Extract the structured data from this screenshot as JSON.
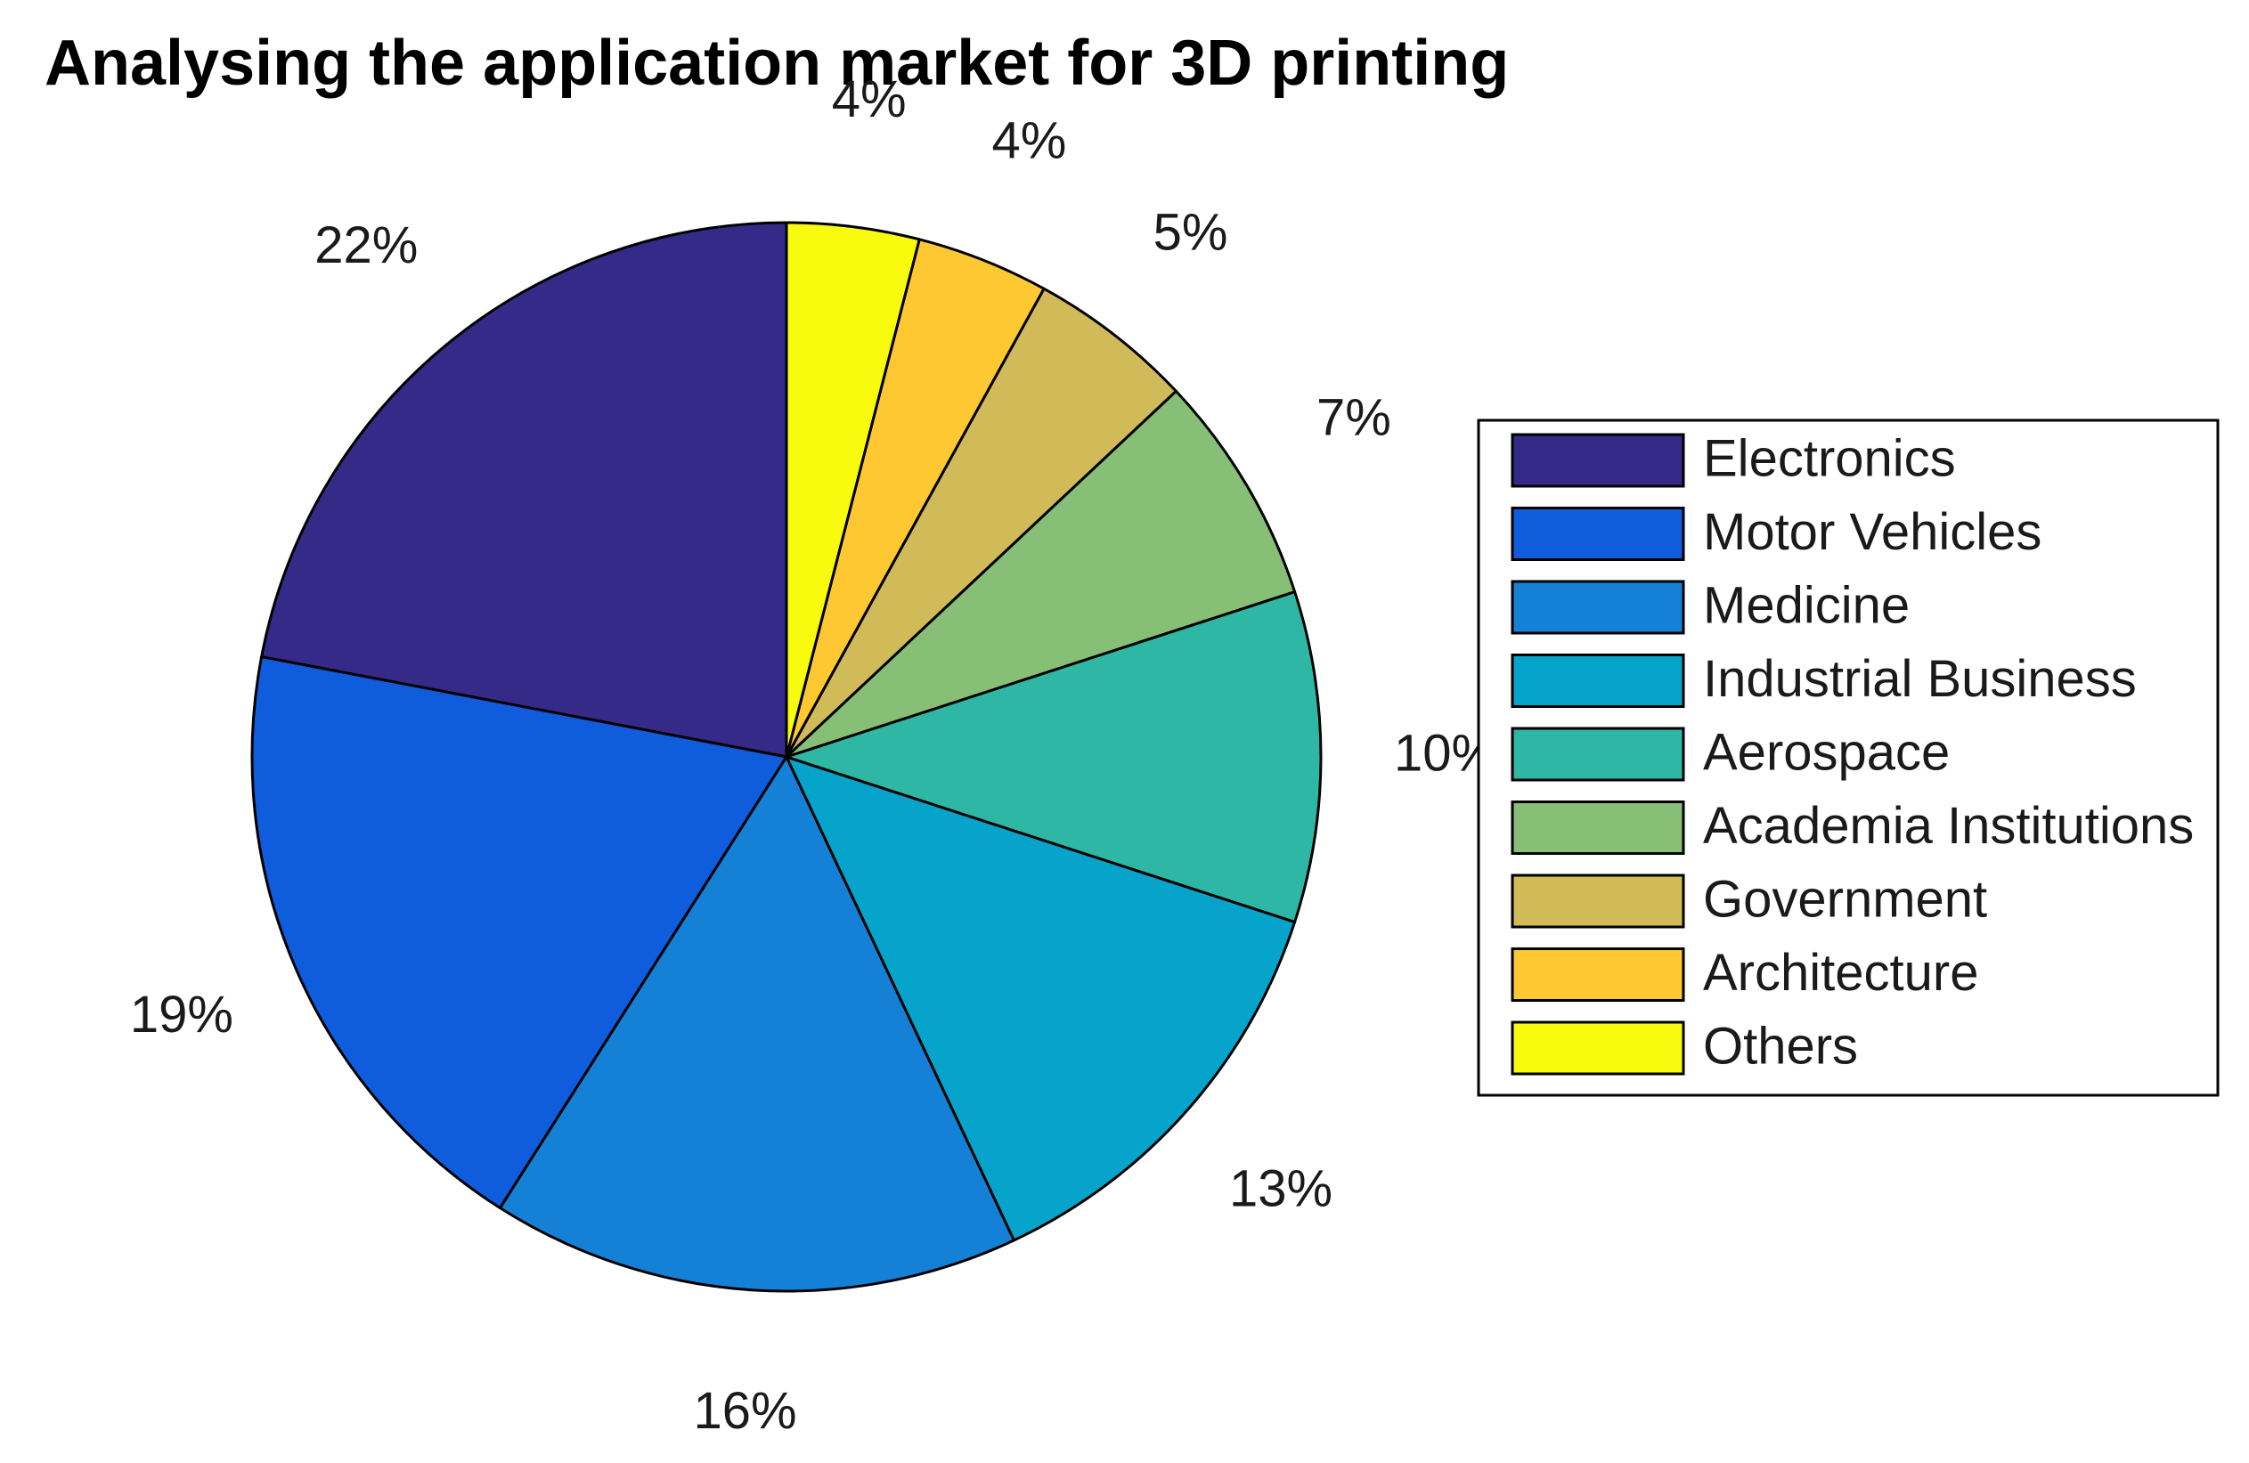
{
  "chart_data": {
    "type": "pie",
    "title": "Analysing the application market for 3D printing",
    "categories": [
      "Electronics",
      "Motor Vehicles",
      "Medicine",
      "Industrial Business",
      "Aerospace",
      "Academia Institutions",
      "Government",
      "Architecture",
      "Others"
    ],
    "values": [
      22,
      19,
      16,
      13,
      10,
      7,
      5,
      4,
      4
    ],
    "labels": [
      "22%",
      "19%",
      "16%",
      "13%",
      "10%",
      "7%",
      "5%",
      "4%",
      "4%"
    ],
    "colors": [
      "#352a87",
      "#0f5cdd",
      "#1481d6",
      "#06a4ca",
      "#2eb7a4",
      "#87bf77",
      "#d1bb59",
      "#fec832",
      "#f9fb0e"
    ],
    "legend_position": "right",
    "start": "12 o'clock",
    "direction": "counterclockwise"
  }
}
